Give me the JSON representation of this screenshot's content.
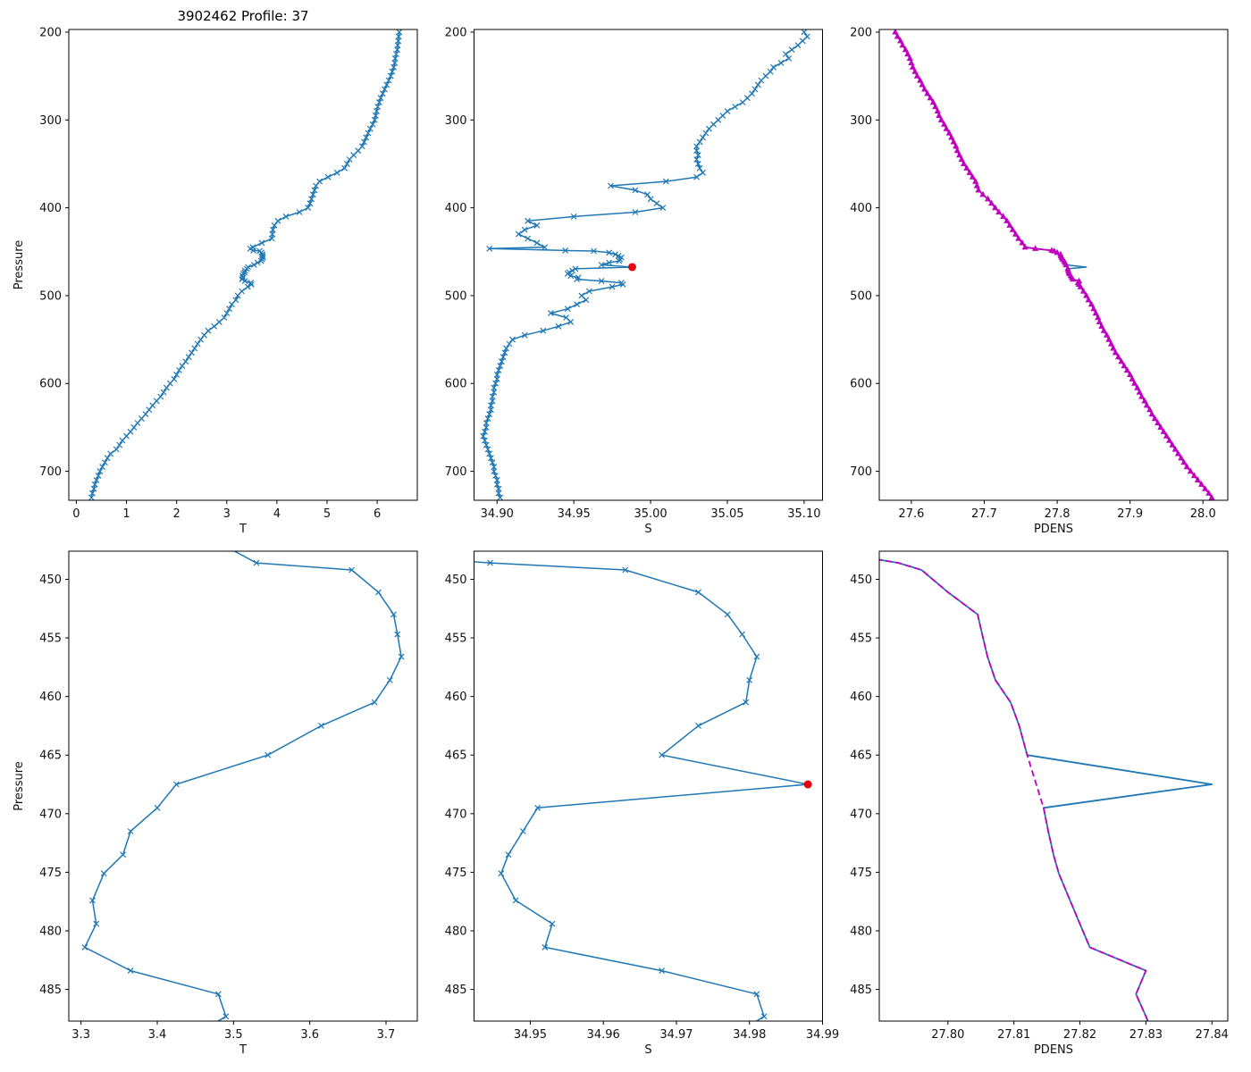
{
  "chart_data": {
    "type": "line",
    "title": "3902462 Profile: 37",
    "layout": {
      "rows": 2,
      "cols": 3,
      "legend": "none",
      "grid": false,
      "y_inverted": true
    },
    "colors": {
      "blue": "#1f77b4",
      "magenta": "#bf00bf",
      "red": "#e8000b"
    },
    "flagged_point": {
      "p": 467.5,
      "s": 34.988
    },
    "profiles": {
      "p": [
        200,
        205,
        210,
        215,
        220,
        225,
        230,
        235,
        240,
        245,
        250,
        255,
        260,
        265,
        270,
        275,
        280,
        285,
        290,
        295,
        300,
        305,
        310,
        315,
        320,
        325,
        330,
        335,
        340,
        345,
        350,
        355,
        360,
        365,
        370,
        375,
        380,
        385,
        390,
        395,
        400,
        405,
        410,
        415,
        420,
        425,
        430,
        435,
        440,
        445,
        446.5,
        448.6,
        449.2,
        451.1,
        453,
        454.7,
        456.6,
        458.6,
        460.5,
        462.5,
        465,
        467.5,
        469.5,
        471.5,
        473.5,
        475.1,
        477.4,
        479.4,
        481.4,
        483.4,
        485.4,
        487.3,
        490,
        495,
        500,
        505,
        510,
        515,
        520,
        525,
        530,
        535,
        540,
        545,
        550,
        555,
        560,
        565,
        570,
        575,
        580,
        585,
        590,
        595,
        600,
        605,
        610,
        615,
        620,
        625,
        630,
        635,
        640,
        645,
        650,
        655,
        660,
        665,
        670,
        675,
        680,
        685,
        690,
        695,
        700,
        705,
        710,
        715,
        720,
        725,
        730
      ],
      "t": [
        6.44,
        6.43,
        6.42,
        6.41,
        6.4,
        6.38,
        6.36,
        6.35,
        6.33,
        6.3,
        6.27,
        6.23,
        6.19,
        6.15,
        6.11,
        6.07,
        6.04,
        6.01,
        5.99,
        5.97,
        5.95,
        5.91,
        5.86,
        5.82,
        5.78,
        5.74,
        5.7,
        5.62,
        5.53,
        5.45,
        5.4,
        5.35,
        5.2,
        5.02,
        4.85,
        4.78,
        4.75,
        4.72,
        4.69,
        4.66,
        4.62,
        4.45,
        4.18,
        4.02,
        3.95,
        3.92,
        3.91,
        3.9,
        3.7,
        3.52,
        3.47,
        3.53,
        3.655,
        3.69,
        3.71,
        3.715,
        3.72,
        3.705,
        3.685,
        3.615,
        3.545,
        3.425,
        3.4,
        3.365,
        3.355,
        3.33,
        3.315,
        3.32,
        3.305,
        3.365,
        3.48,
        3.49,
        3.42,
        3.3,
        3.22,
        3.18,
        3.1,
        3.05,
        3.0,
        2.95,
        2.85,
        2.75,
        2.63,
        2.55,
        2.48,
        2.42,
        2.36,
        2.3,
        2.24,
        2.18,
        2.11,
        2.05,
        2.0,
        1.95,
        1.87,
        1.8,
        1.74,
        1.68,
        1.6,
        1.52,
        1.45,
        1.38,
        1.3,
        1.22,
        1.15,
        1.08,
        1.0,
        0.92,
        0.86,
        0.8,
        0.68,
        0.62,
        0.57,
        0.52,
        0.47,
        0.44,
        0.4,
        0.37,
        0.35,
        0.32,
        0.3
      ],
      "s": [
        35.1,
        35.102,
        35.099,
        35.096,
        35.092,
        35.088,
        35.09,
        35.085,
        35.08,
        35.078,
        35.075,
        35.072,
        35.07,
        35.068,
        35.066,
        35.063,
        35.06,
        35.055,
        35.05,
        35.047,
        35.044,
        35.041,
        35.038,
        35.036,
        35.034,
        35.032,
        35.03,
        35.03,
        35.031,
        35.03,
        35.031,
        35.032,
        35.034,
        35.03,
        35.01,
        34.974,
        34.99,
        34.998,
        35.0,
        35.004,
        35.008,
        34.99,
        34.95,
        34.92,
        34.926,
        34.918,
        34.914,
        34.92,
        34.926,
        34.931,
        34.895,
        34.9445,
        34.963,
        34.973,
        34.977,
        34.979,
        34.981,
        34.98,
        34.9795,
        34.973,
        34.968,
        34.988,
        34.951,
        34.949,
        34.947,
        34.946,
        34.948,
        34.953,
        34.952,
        34.968,
        34.981,
        34.982,
        34.975,
        34.96,
        34.955,
        34.958,
        34.952,
        34.946,
        34.935,
        34.945,
        34.948,
        34.94,
        34.93,
        34.918,
        34.91,
        34.908,
        34.906,
        34.905,
        34.904,
        34.903,
        34.902,
        34.901,
        34.9,
        34.9,
        34.899,
        34.898,
        34.898,
        34.897,
        34.897,
        34.896,
        34.896,
        34.895,
        34.894,
        34.893,
        34.893,
        34.892,
        34.891,
        34.892,
        34.893,
        34.894,
        34.895,
        34.896,
        34.897,
        34.898,
        34.898,
        34.899,
        34.9,
        34.9,
        34.901,
        34.901,
        34.902
      ],
      "pdens": [
        27.578,
        27.581,
        27.585,
        27.588,
        27.592,
        27.595,
        27.598,
        27.6,
        27.602,
        27.605,
        27.608,
        27.612,
        27.615,
        27.618,
        27.622,
        27.626,
        27.63,
        27.633,
        27.636,
        27.638,
        27.641,
        27.645,
        27.648,
        27.652,
        27.655,
        27.658,
        27.661,
        27.663,
        27.666,
        27.669,
        27.672,
        27.676,
        27.68,
        27.684,
        27.688,
        27.69,
        27.692,
        27.698,
        27.705,
        27.71,
        27.715,
        27.72,
        27.726,
        27.731,
        27.735,
        27.739,
        27.743,
        27.747,
        27.752,
        27.756,
        27.77,
        27.7925,
        27.796,
        27.8,
        27.8045,
        27.8052,
        27.806,
        27.8072,
        27.8095,
        27.8108,
        27.812,
        27.84,
        27.8145,
        27.8152,
        27.816,
        27.8168,
        27.8185,
        27.82,
        27.8215,
        27.83,
        27.8285,
        27.83,
        27.832,
        27.836,
        27.84,
        27.843,
        27.847,
        27.85,
        27.853,
        27.856,
        27.858,
        27.861,
        27.864,
        27.868,
        27.871,
        27.874,
        27.877,
        27.88,
        27.884,
        27.888,
        27.892,
        27.896,
        27.9,
        27.903,
        27.906,
        27.91,
        27.913,
        27.916,
        27.92,
        27.923,
        27.927,
        27.93,
        27.934,
        27.938,
        27.942,
        27.946,
        27.95,
        27.954,
        27.958,
        27.962,
        27.966,
        27.97,
        27.974,
        27.978,
        27.983,
        27.988,
        27.993,
        27.998,
        28.003,
        28.008,
        28.012
      ]
    },
    "subplots": [
      {
        "name": "temperature-full",
        "row": 0,
        "col": 0,
        "xlabel": "T",
        "ylabel": "Pressure",
        "xlim": [
          -0.15,
          6.8
        ],
        "ylim": [
          197,
          733
        ],
        "xticks": [
          0,
          1,
          2,
          3,
          4,
          5,
          6
        ],
        "xtick_labels": [
          "0",
          "1",
          "2",
          "3",
          "4",
          "5",
          "6"
        ],
        "yticks": [
          200,
          300,
          400,
          500,
          600,
          700
        ],
        "series": [
          {
            "name": "t-profile",
            "profile": "t",
            "color": "blue",
            "marker": "x"
          }
        ]
      },
      {
        "name": "salinity-full",
        "row": 0,
        "col": 1,
        "xlabel": "S",
        "ylabel": "",
        "xlim": [
          34.885,
          35.112
        ],
        "ylim": [
          197,
          733
        ],
        "xticks": [
          34.9,
          34.95,
          35.0,
          35.05,
          35.1
        ],
        "xtick_labels": [
          "34.90",
          "34.95",
          "35.00",
          "35.05",
          "35.10"
        ],
        "yticks": [
          200,
          300,
          400,
          500,
          600,
          700
        ],
        "series": [
          {
            "name": "s-profile",
            "profile": "s",
            "color": "blue",
            "marker": "x"
          },
          {
            "name": "flagged-sample",
            "type": "point",
            "color": "red"
          }
        ]
      },
      {
        "name": "pdens-full",
        "row": 0,
        "col": 2,
        "xlabel": "PDENS",
        "ylabel": "",
        "xlim": [
          27.556,
          28.034
        ],
        "ylim": [
          197,
          733
        ],
        "xticks": [
          27.6,
          27.7,
          27.8,
          27.9,
          28.0
        ],
        "xtick_labels": [
          "27.6",
          "27.7",
          "27.8",
          "27.9",
          "28.0"
        ],
        "yticks": [
          200,
          300,
          400,
          500,
          600,
          700
        ],
        "series": [
          {
            "name": "pdens-raw",
            "profile": "pdens",
            "color": "blue",
            "width": 1.5
          },
          {
            "name": "pdens-check",
            "profile": "pdens",
            "color": "magenta",
            "marker": "tri",
            "width": 1.8,
            "skip_p": [
              467.5
            ]
          }
        ]
      },
      {
        "name": "temperature-zoom",
        "row": 1,
        "col": 0,
        "xlabel": "T",
        "ylabel": "Pressure",
        "xlim": [
          3.284,
          3.741
        ],
        "ylim": [
          447.6,
          487.7
        ],
        "slice": [
          446,
          491
        ],
        "xticks": [
          3.3,
          3.4,
          3.5,
          3.6,
          3.7
        ],
        "xtick_labels": [
          "3.3",
          "3.4",
          "3.5",
          "3.6",
          "3.7"
        ],
        "yticks": [
          450,
          455,
          460,
          465,
          470,
          475,
          480,
          485
        ],
        "series": [
          {
            "name": "t-profile-zoom",
            "profile": "t",
            "color": "blue",
            "marker": "x"
          }
        ]
      },
      {
        "name": "salinity-zoom",
        "row": 1,
        "col": 1,
        "xlabel": "S",
        "ylabel": "",
        "xlim": [
          34.9423,
          34.99
        ],
        "ylim": [
          447.6,
          487.7
        ],
        "slice": [
          446,
          491
        ],
        "xticks": [
          34.95,
          34.96,
          34.97,
          34.98,
          34.99
        ],
        "xtick_labels": [
          "34.95",
          "34.96",
          "34.97",
          "34.98",
          "34.99"
        ],
        "yticks": [
          450,
          455,
          460,
          465,
          470,
          475,
          480,
          485
        ],
        "series": [
          {
            "name": "s-profile-zoom",
            "profile": "s",
            "color": "blue",
            "marker": "x"
          },
          {
            "name": "flagged-sample",
            "type": "point",
            "color": "red"
          }
        ]
      },
      {
        "name": "pdens-zoom",
        "row": 1,
        "col": 2,
        "xlabel": "PDENS",
        "ylabel": "",
        "xlim": [
          27.7896,
          27.8424
        ],
        "ylim": [
          447.6,
          487.7
        ],
        "slice": [
          446,
          491
        ],
        "xticks": [
          27.8,
          27.81,
          27.82,
          27.83,
          27.84
        ],
        "xtick_labels": [
          "27.80",
          "27.81",
          "27.82",
          "27.83",
          "27.84"
        ],
        "yticks": [
          450,
          455,
          460,
          465,
          470,
          475,
          480,
          485
        ],
        "series": [
          {
            "name": "pdens-raw-zoom",
            "profile": "pdens",
            "color": "blue",
            "width": 1.8
          },
          {
            "name": "pdens-check-zoom",
            "profile": "pdens",
            "color": "magenta",
            "dash": true,
            "width": 1.8,
            "skip_p": [
              467.5
            ]
          }
        ]
      }
    ]
  }
}
